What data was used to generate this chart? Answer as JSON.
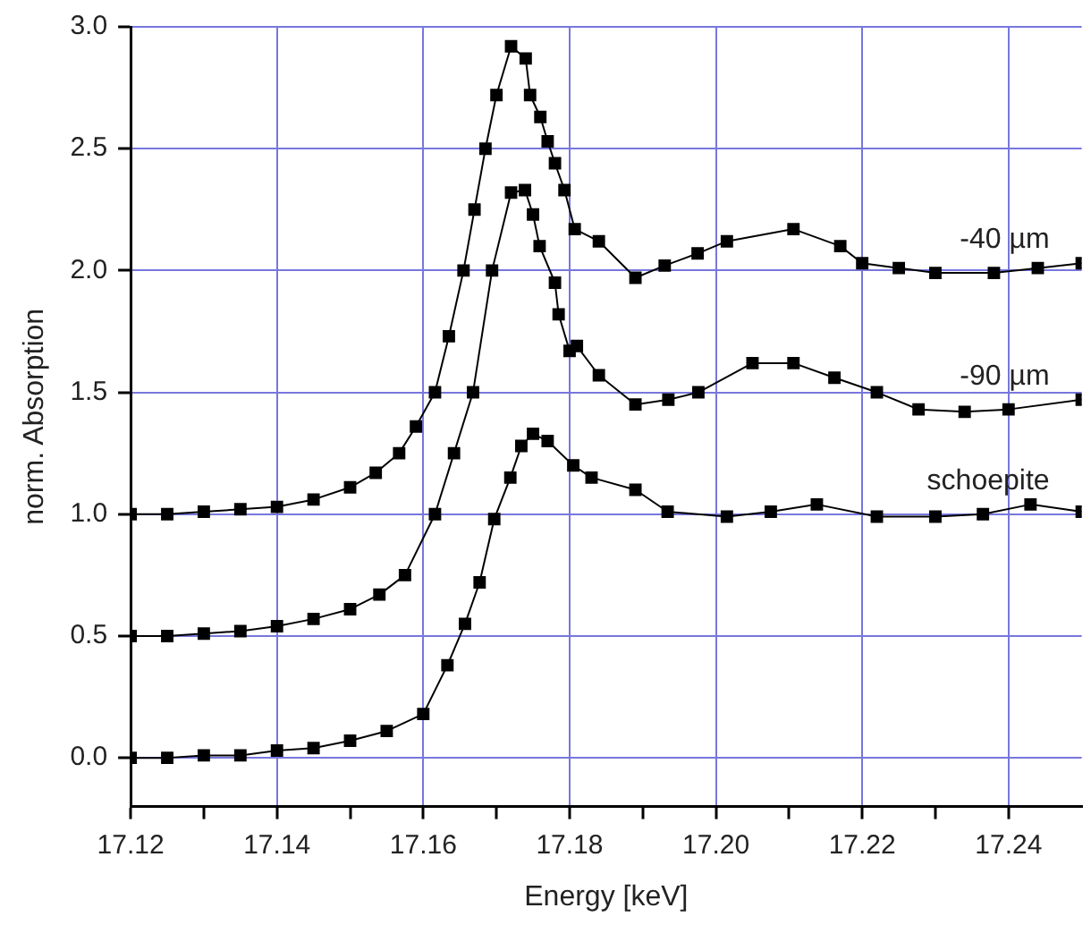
{
  "chart_data": {
    "type": "line",
    "xlabel": "Energy [keV]",
    "ylabel": "norm. Absorption",
    "xlim": [
      17.12,
      17.25
    ],
    "ylim": [
      -0.2,
      3.0
    ],
    "xticks": [
      {
        "value": 17.12,
        "label": "17.12"
      },
      {
        "value": 17.13,
        "label": null
      },
      {
        "value": 17.14,
        "label": "17.14"
      },
      {
        "value": 17.15,
        "label": null
      },
      {
        "value": 17.16,
        "label": "17.16"
      },
      {
        "value": 17.17,
        "label": null
      },
      {
        "value": 17.18,
        "label": "17.18"
      },
      {
        "value": 17.19,
        "label": null
      },
      {
        "value": 17.2,
        "label": "17.20"
      },
      {
        "value": 17.21,
        "label": null
      },
      {
        "value": 17.22,
        "label": "17.22"
      },
      {
        "value": 17.23,
        "label": null
      },
      {
        "value": 17.24,
        "label": "17.24"
      }
    ],
    "yticks": [
      {
        "value": 0,
        "label": "0.0"
      },
      0.5,
      {
        "value": 1,
        "label": "1.0"
      },
      1.5,
      {
        "value": 2,
        "label": "2.0"
      },
      2.5,
      {
        "value": 3,
        "label": "3.0"
      }
    ],
    "grid": true,
    "legend": false,
    "marker": "square",
    "line_style": "solid",
    "series": [
      {
        "name": "-40 µm",
        "color": "#000000",
        "x": [
          17.12,
          17.125,
          17.13,
          17.135,
          17.14,
          17.145,
          17.15,
          17.1535,
          17.1567,
          17.159,
          17.1616,
          17.1635,
          17.1655,
          17.167,
          17.1685,
          17.17,
          17.172,
          17.174,
          17.1746,
          17.176,
          17.177,
          17.178,
          17.1793,
          17.1807,
          17.184,
          17.189,
          17.193,
          17.1975,
          17.2015,
          17.2106,
          17.217,
          17.22,
          17.225,
          17.23,
          17.238,
          17.244,
          17.25
        ],
        "values": [
          1.0,
          1.0,
          1.01,
          1.02,
          1.03,
          1.06,
          1.11,
          1.17,
          1.25,
          1.36,
          1.5,
          1.73,
          2.0,
          2.25,
          2.5,
          2.72,
          2.92,
          2.87,
          2.72,
          2.63,
          2.53,
          2.44,
          2.33,
          2.17,
          2.12,
          1.97,
          2.02,
          2.07,
          2.12,
          2.17,
          2.1,
          2.03,
          2.01,
          1.99,
          1.99,
          2.01,
          2.03
        ]
      },
      {
        "name": "-90 µm",
        "color": "#000000",
        "x": [
          17.12,
          17.125,
          17.13,
          17.135,
          17.14,
          17.145,
          17.15,
          17.154,
          17.1575,
          17.1616,
          17.1642,
          17.1668,
          17.1694,
          17.172,
          17.1739,
          17.175,
          17.1759,
          17.178,
          17.1785,
          17.18,
          17.181,
          17.184,
          17.189,
          17.1935,
          17.1976,
          17.205,
          17.2106,
          17.2162,
          17.222,
          17.2277,
          17.234,
          17.24,
          17.25
        ],
        "values": [
          0.5,
          0.5,
          0.51,
          0.52,
          0.54,
          0.57,
          0.61,
          0.67,
          0.75,
          1.0,
          1.25,
          1.5,
          2.0,
          2.32,
          2.33,
          2.23,
          2.1,
          1.95,
          1.82,
          1.67,
          1.69,
          1.57,
          1.45,
          1.47,
          1.5,
          1.62,
          1.62,
          1.56,
          1.5,
          1.43,
          1.42,
          1.43,
          1.47
        ]
      },
      {
        "name": "schoepite",
        "color": "#000000",
        "x": [
          17.12,
          17.125,
          17.13,
          17.135,
          17.14,
          17.145,
          17.15,
          17.155,
          17.16,
          17.1633,
          17.1657,
          17.1677,
          17.1697,
          17.1719,
          17.1734,
          17.175,
          17.177,
          17.1805,
          17.183,
          17.189,
          17.1934,
          17.2015,
          17.2075,
          17.2138,
          17.222,
          17.23,
          17.2365,
          17.243,
          17.25
        ],
        "values": [
          0.0,
          0.0,
          0.01,
          0.01,
          0.03,
          0.04,
          0.07,
          0.11,
          0.18,
          0.38,
          0.55,
          0.72,
          0.98,
          1.15,
          1.28,
          1.33,
          1.3,
          1.2,
          1.15,
          1.1,
          1.01,
          0.99,
          1.01,
          1.04,
          0.99,
          0.99,
          1.0,
          1.04,
          1.01
        ]
      }
    ]
  }
}
